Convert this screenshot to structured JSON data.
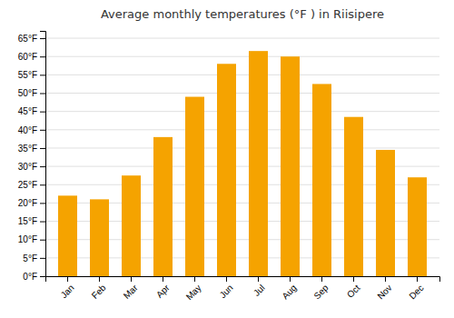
{
  "chart_data": {
    "type": "bar",
    "title": "Average monthly temperatures (°F ) in Riisipere",
    "categories": [
      "Jan",
      "Feb",
      "Mar",
      "Apr",
      "May",
      "Jun",
      "Jul",
      "Aug",
      "Sep",
      "Oct",
      "Nov",
      "Dec"
    ],
    "values": [
      22,
      21,
      27.5,
      38,
      49,
      58,
      61.5,
      60,
      52.5,
      43.5,
      34.5,
      27
    ],
    "color": "#F5A300",
    "ylim": [
      0,
      67
    ],
    "yticks": [
      {
        "value": 0,
        "label": "0°F"
      },
      {
        "value": 5,
        "label": "5°F"
      },
      {
        "value": 10,
        "label": "10°F"
      },
      {
        "value": 15,
        "label": "15°F"
      },
      {
        "value": 20,
        "label": "20°F"
      },
      {
        "value": 25,
        "label": "25°F"
      },
      {
        "value": 30,
        "label": "30°F"
      },
      {
        "value": 35,
        "label": "35°F"
      },
      {
        "value": 40,
        "label": "40°F"
      },
      {
        "value": 45,
        "label": "45°F"
      },
      {
        "value": 50,
        "label": "50°F"
      },
      {
        "value": 55,
        "label": "55°F"
      },
      {
        "value": 60,
        "label": "60°F"
      },
      {
        "value": 65,
        "label": "65°F"
      }
    ],
    "grid": true
  }
}
